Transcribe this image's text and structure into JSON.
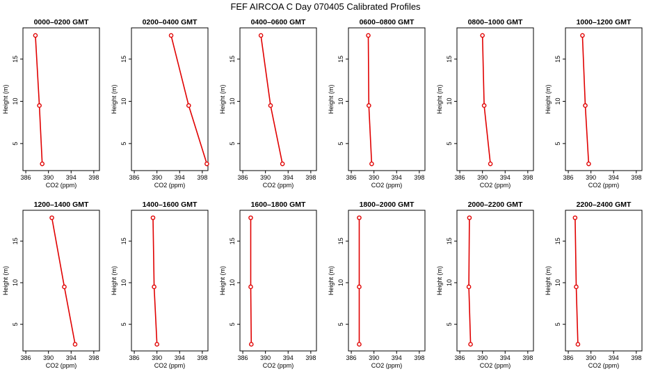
{
  "figure": {
    "title": "FEF AIRCOA C  Day 070405  Calibrated Profiles"
  },
  "chart_data": [
    {
      "type": "line",
      "title": "0000–0200 GMT",
      "xlabel": "CO2 (ppm)",
      "ylabel": "Height (m)",
      "xlim": [
        385.5,
        399
      ],
      "ylim": [
        1.8,
        18.7
      ],
      "xticks": [
        "386",
        "390",
        "394",
        "398"
      ],
      "yticks": [
        "5",
        "10",
        "15"
      ],
      "x": [
        388.9,
        388.4,
        387.7
      ],
      "y": [
        2.6,
        9.5,
        17.8
      ]
    },
    {
      "type": "line",
      "title": "0200–0400 GMT",
      "xlabel": "CO2 (ppm)",
      "ylabel": "Height (m)",
      "xlim": [
        385.5,
        399
      ],
      "ylim": [
        1.8,
        18.7
      ],
      "xticks": [
        "386",
        "390",
        "394",
        "398"
      ],
      "yticks": [
        "5",
        "10",
        "15"
      ],
      "x": [
        398.8,
        395.6,
        392.5
      ],
      "y": [
        2.6,
        9.5,
        17.8
      ]
    },
    {
      "type": "line",
      "title": "0400–0600 GMT",
      "xlabel": "CO2 (ppm)",
      "ylabel": "Height (m)",
      "xlim": [
        385.5,
        399
      ],
      "ylim": [
        1.8,
        18.7
      ],
      "xticks": [
        "386",
        "390",
        "394",
        "398"
      ],
      "yticks": [
        "5",
        "10",
        "15"
      ],
      "x": [
        393.0,
        390.9,
        389.2
      ],
      "y": [
        2.6,
        9.5,
        17.8
      ]
    },
    {
      "type": "line",
      "title": "0600–0800 GMT",
      "xlabel": "CO2 (ppm)",
      "ylabel": "Height (m)",
      "xlim": [
        385.5,
        399
      ],
      "ylim": [
        1.8,
        18.7
      ],
      "xticks": [
        "386",
        "390",
        "394",
        "398"
      ],
      "yticks": [
        "5",
        "10",
        "15"
      ],
      "x": [
        389.6,
        389.1,
        389.0
      ],
      "y": [
        2.6,
        9.5,
        17.8
      ]
    },
    {
      "type": "line",
      "title": "0800–1000 GMT",
      "xlabel": "CO2 (ppm)",
      "ylabel": "Height (m)",
      "xlim": [
        385.5,
        399
      ],
      "ylim": [
        1.8,
        18.7
      ],
      "xticks": [
        "386",
        "390",
        "394",
        "398"
      ],
      "yticks": [
        "5",
        "10",
        "15"
      ],
      "x": [
        391.4,
        390.3,
        390.0
      ],
      "y": [
        2.6,
        9.5,
        17.8
      ]
    },
    {
      "type": "line",
      "title": "1000–1200 GMT",
      "xlabel": "CO2 (ppm)",
      "ylabel": "Height (m)",
      "xlim": [
        385.5,
        399
      ],
      "ylim": [
        1.8,
        18.7
      ],
      "xticks": [
        "386",
        "390",
        "394",
        "398"
      ],
      "yticks": [
        "5",
        "10",
        "15"
      ],
      "x": [
        389.6,
        389.0,
        388.5
      ],
      "y": [
        2.6,
        9.5,
        17.8
      ]
    },
    {
      "type": "line",
      "title": "1200–1400 GMT",
      "xlabel": "CO2 (ppm)",
      "ylabel": "Height (m)",
      "xlim": [
        385.5,
        399
      ],
      "ylim": [
        1.8,
        18.7
      ],
      "xticks": [
        "386",
        "390",
        "394",
        "398"
      ],
      "yticks": [
        "5",
        "10",
        "15"
      ],
      "x": [
        394.7,
        392.8,
        390.6
      ],
      "y": [
        2.6,
        9.5,
        17.8
      ]
    },
    {
      "type": "line",
      "title": "1400–1600 GMT",
      "xlabel": "CO2 (ppm)",
      "ylabel": "Height (m)",
      "xlim": [
        385.5,
        399
      ],
      "ylim": [
        1.8,
        18.7
      ],
      "xticks": [
        "386",
        "390",
        "394",
        "398"
      ],
      "yticks": [
        "5",
        "10",
        "15"
      ],
      "x": [
        390.0,
        389.5,
        389.3
      ],
      "y": [
        2.6,
        9.5,
        17.8
      ]
    },
    {
      "type": "line",
      "title": "1600–1800 GMT",
      "xlabel": "CO2 (ppm)",
      "ylabel": "Height (m)",
      "xlim": [
        385.5,
        399
      ],
      "ylim": [
        1.8,
        18.7
      ],
      "xticks": [
        "386",
        "390",
        "394",
        "398"
      ],
      "yticks": [
        "5",
        "10",
        "15"
      ],
      "x": [
        387.5,
        387.4,
        387.4
      ],
      "y": [
        2.6,
        9.5,
        17.8
      ]
    },
    {
      "type": "line",
      "title": "1800–2000 GMT",
      "xlabel": "CO2 (ppm)",
      "ylabel": "Height (m)",
      "xlim": [
        385.5,
        399
      ],
      "ylim": [
        1.8,
        18.7
      ],
      "xticks": [
        "386",
        "390",
        "394",
        "398"
      ],
      "yticks": [
        "5",
        "10",
        "15"
      ],
      "x": [
        387.4,
        387.4,
        387.4
      ],
      "y": [
        2.6,
        9.5,
        17.8
      ]
    },
    {
      "type": "line",
      "title": "2000–2200 GMT",
      "xlabel": "CO2 (ppm)",
      "ylabel": "Height (m)",
      "xlim": [
        385.5,
        399
      ],
      "ylim": [
        1.8,
        18.7
      ],
      "xticks": [
        "386",
        "390",
        "394",
        "398"
      ],
      "yticks": [
        "5",
        "10",
        "15"
      ],
      "x": [
        387.9,
        387.6,
        387.7
      ],
      "y": [
        2.6,
        9.5,
        17.8
      ]
    },
    {
      "type": "line",
      "title": "2200–2400 GMT",
      "xlabel": "CO2 (ppm)",
      "ylabel": "Height (m)",
      "xlim": [
        385.5,
        399
      ],
      "ylim": [
        1.8,
        18.7
      ],
      "xticks": [
        "386",
        "390",
        "394",
        "398"
      ],
      "yticks": [
        "5",
        "10",
        "15"
      ],
      "x": [
        387.7,
        387.4,
        387.2
      ],
      "y": [
        2.6,
        9.5,
        17.8
      ]
    }
  ],
  "colors": {
    "series": "#e00000",
    "frame": "#000000",
    "background": "#ffffff"
  }
}
